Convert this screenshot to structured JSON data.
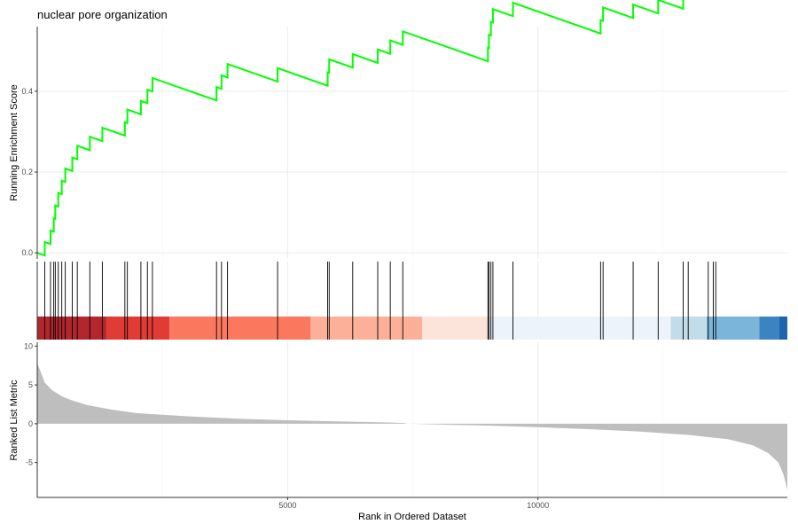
{
  "chart_data": {
    "type": "line",
    "title": "nuclear pore organization",
    "xlabel": "Rank in Ordered Dataset",
    "xlim": [
      0,
      14980
    ],
    "x_ticks": [
      {
        "value": 5000,
        "label": "5000"
      },
      {
        "value": 10000,
        "label": "10000"
      }
    ],
    "running_score": {
      "ylabel": "Running Enrichment Score",
      "ylim": [
        -0.015,
        0.56
      ],
      "y_ticks": [
        {
          "value": 0.0,
          "label": "0.0"
        },
        {
          "value": 0.2,
          "label": "0.2"
        },
        {
          "value": 0.4,
          "label": "0.4"
        }
      ],
      "line_color": "#00ff00",
      "hit_step": 0.0333,
      "miss_slope_per_rank": -4.35e-05,
      "start_value": 0.0
    },
    "gene_hits": [
      150,
      265,
      330,
      360,
      420,
      490,
      560,
      700,
      800,
      1050,
      1300,
      1750,
      1800,
      2070,
      2200,
      2300,
      3580,
      3680,
      3800,
      4800,
      5800,
      5830,
      6300,
      6800,
      7050,
      7300,
      9000,
      9020,
      9060,
      9100,
      9500,
      11250,
      11300,
      11900,
      12400,
      12900,
      13000,
      13400,
      13500,
      13550
    ],
    "rank_colors": [
      {
        "start": 0,
        "end": 1380,
        "color": "#b2262e"
      },
      {
        "start": 1380,
        "end": 2640,
        "color": "#e03b34"
      },
      {
        "start": 2640,
        "end": 5460,
        "color": "#fb785f"
      },
      {
        "start": 5460,
        "end": 7690,
        "color": "#fcb09a"
      },
      {
        "start": 7690,
        "end": 9020,
        "color": "#fde4da"
      },
      {
        "start": 9020,
        "end": 12650,
        "color": "#edf3fb"
      },
      {
        "start": 12650,
        "end": 13370,
        "color": "#c3dcea"
      },
      {
        "start": 13370,
        "end": 14420,
        "color": "#7bb5da"
      },
      {
        "start": 14420,
        "end": 14820,
        "color": "#3c84c1"
      },
      {
        "start": 14820,
        "end": 14980,
        "color": "#1d64aa"
      }
    ],
    "ranked_metric": {
      "ylabel": "Ranked List Metric",
      "ylim": [
        -9.5,
        10.5
      ],
      "y_ticks": [
        {
          "value": 10,
          "label": "10"
        },
        {
          "value": 5,
          "label": "5"
        },
        {
          "value": 0,
          "label": "0"
        },
        {
          "value": -5,
          "label": "-5"
        }
      ],
      "fill_color": "#bebebe",
      "points": [
        [
          0,
          7.8
        ],
        [
          50,
          7.0
        ],
        [
          150,
          5.3
        ],
        [
          300,
          4.3
        ],
        [
          500,
          3.5
        ],
        [
          700,
          3.0
        ],
        [
          1000,
          2.4
        ],
        [
          1500,
          1.8
        ],
        [
          2000,
          1.35
        ],
        [
          3000,
          0.95
        ],
        [
          4000,
          0.65
        ],
        [
          5000,
          0.45
        ],
        [
          6000,
          0.3
        ],
        [
          7000,
          0.16
        ],
        [
          7300,
          0.1
        ],
        [
          7400,
          0.0
        ],
        [
          8000,
          -0.1
        ],
        [
          9000,
          -0.25
        ],
        [
          10000,
          -0.45
        ],
        [
          11000,
          -0.7
        ],
        [
          12000,
          -1.0
        ],
        [
          13000,
          -1.45
        ],
        [
          13800,
          -2.0
        ],
        [
          14300,
          -2.8
        ],
        [
          14600,
          -3.8
        ],
        [
          14800,
          -5.0
        ],
        [
          14900,
          -6.5
        ],
        [
          14960,
          -8.0
        ],
        [
          14980,
          -8.5
        ]
      ]
    },
    "grid": true,
    "legend": "none"
  }
}
